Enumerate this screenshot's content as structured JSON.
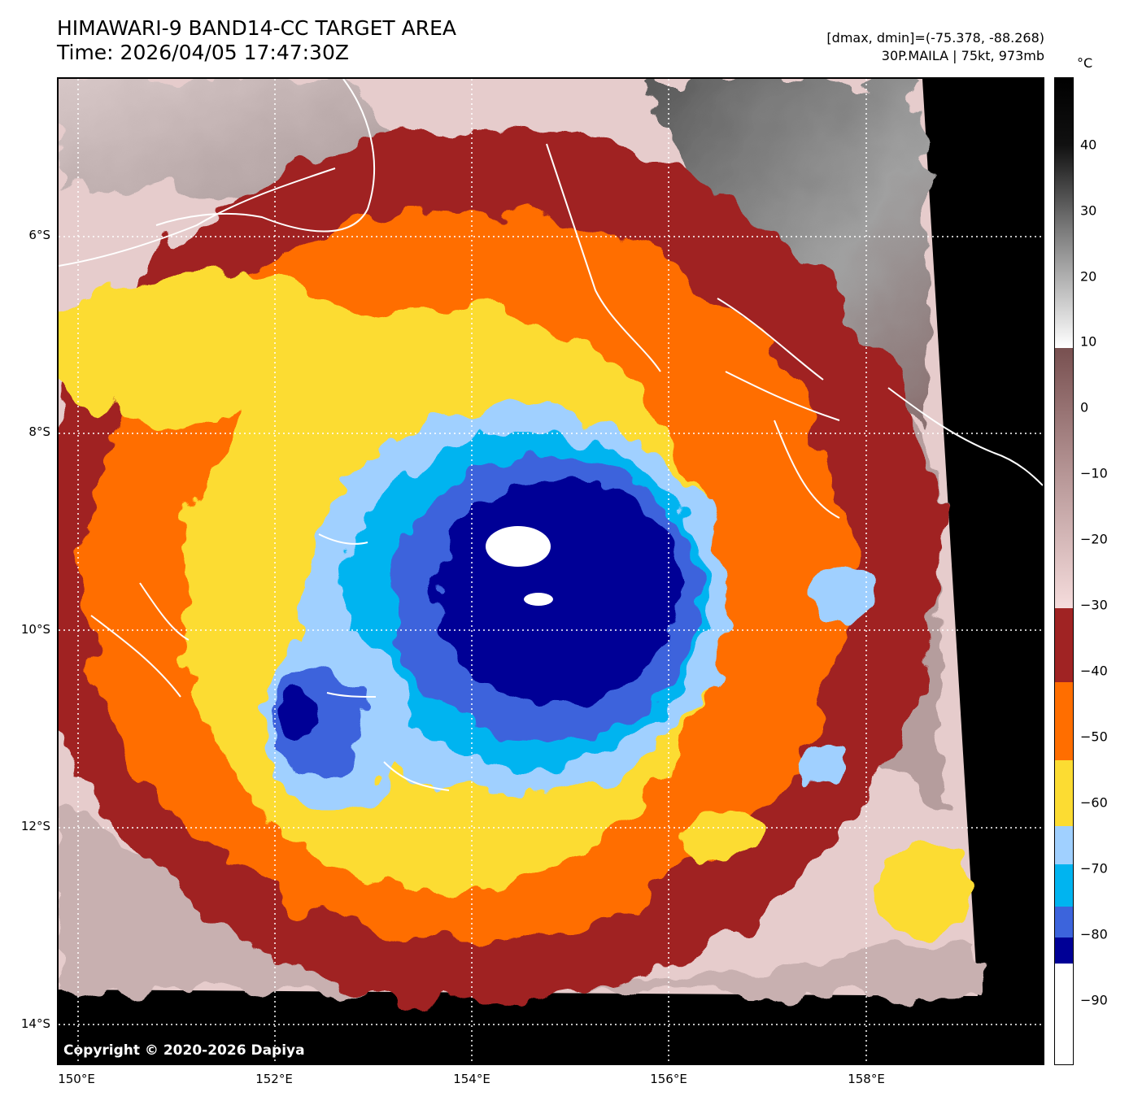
{
  "title": {
    "line1": "HIMAWARI-9 BAND14-CC TARGET AREA",
    "line2": "Time: 2026/04/05 17:47:30Z"
  },
  "meta": {
    "dminmax": "[dmax, dmin]=(-75.378, -88.268)",
    "storm": "30P.MAILA | 75kt, 973mb"
  },
  "copyright": "Copyright © 2020-2026 Dapiya",
  "lat_labels": [
    "6°S",
    "8°S",
    "10°S",
    "12°S",
    "14°S"
  ],
  "lon_labels": [
    "150°E",
    "152°E",
    "154°E",
    "156°E",
    "158°E"
  ],
  "colorbar": {
    "unit": "°C",
    "ticks": [
      "40",
      "30",
      "20",
      "10",
      "0",
      "−10",
      "−20",
      "−30",
      "−40",
      "−50",
      "−60",
      "−70",
      "−80",
      "−90"
    ],
    "colors": {
      "white": "#ffffff",
      "navy": "#000096",
      "royal_blue": "#3c64dc",
      "deep_sky": "#00b4f0",
      "light_blue": "#a0d0ff",
      "yellow": "#fcdc32",
      "orange": "#ff6e00",
      "brick": "#a02323",
      "pink": "#f0d2d2",
      "mauve": "#8c6464",
      "black": "#000000"
    }
  }
}
